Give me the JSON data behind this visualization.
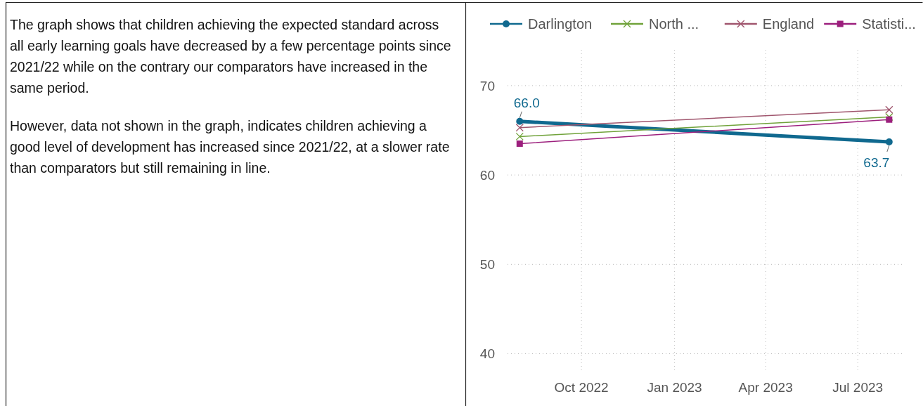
{
  "chart_data": [
    {
      "type": "other",
      "annotations": [
        "The graph shows that children achieving the expected standard across all early learning goals have decreased by a few percentage points since 2021/22 while on the contrary our comparators have increased in the same period.",
        "However, data not shown in the graph, indicates children achieving a good level of development has increased since 2021/22, at a slower rate than comparators but still remaining in line."
      ]
    },
    {
      "type": "line",
      "x": [
        "2022-08-01",
        "2023-08-01"
      ],
      "series": [
        {
          "name": "Darlington",
          "color": "#10698f",
          "values": [
            66.0,
            63.7
          ],
          "marker": "circle",
          "value_labels": [
            "66.0",
            "63.7"
          ]
        },
        {
          "name": "North ...",
          "color": "#70a23a",
          "values": [
            64.3,
            66.5
          ],
          "marker": "cross"
        },
        {
          "name": "England",
          "color": "#a0566e",
          "values": [
            65.3,
            67.3
          ],
          "marker": "cross"
        },
        {
          "name": "Statisti...",
          "color": "#9c1f7d",
          "values": [
            63.5,
            66.2
          ],
          "marker": "square"
        }
      ],
      "xlim": [
        "2022-07-20",
        "2023-08-15"
      ],
      "xticks": [
        {
          "value": "2022-10-01",
          "label": "Oct 2022"
        },
        {
          "value": "2023-01-01",
          "label": "Jan 2023"
        },
        {
          "value": "2023-04-01",
          "label": "Apr 2023"
        },
        {
          "value": "2023-07-01",
          "label": "Jul 2023"
        }
      ],
      "ylim": [
        38,
        74
      ],
      "yticks": [
        40,
        50,
        60,
        70
      ],
      "grid": true,
      "legend": "top",
      "line_style": "solid"
    }
  ]
}
